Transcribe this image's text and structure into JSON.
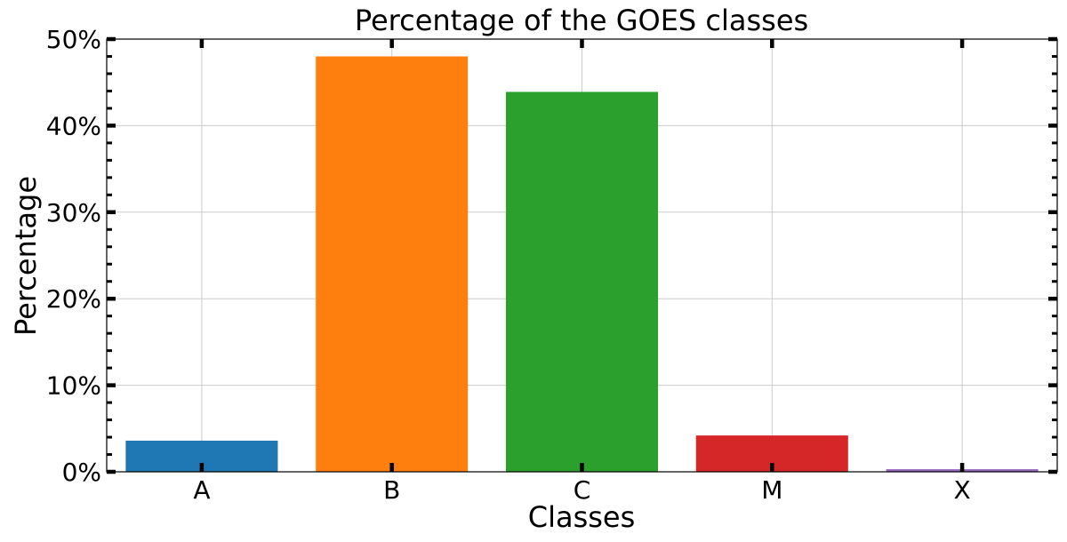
{
  "chart_data": {
    "type": "bar",
    "title": "Percentage of the GOES classes",
    "xlabel": "Classes",
    "ylabel": "Percentage",
    "categories": [
      "A",
      "B",
      "C",
      "M",
      "X"
    ],
    "values": [
      3.6,
      48.0,
      43.9,
      4.2,
      0.3
    ],
    "colors": [
      "#1f77b4",
      "#ff7f0e",
      "#2ca02c",
      "#d62728",
      "#9467bd"
    ],
    "ylim": [
      0,
      50
    ],
    "yticks": [
      0,
      10,
      20,
      30,
      40,
      50
    ],
    "ytick_labels": [
      "0%",
      "10%",
      "20%",
      "30%",
      "40%",
      "50%"
    ],
    "grid": true,
    "legend": "none"
  }
}
